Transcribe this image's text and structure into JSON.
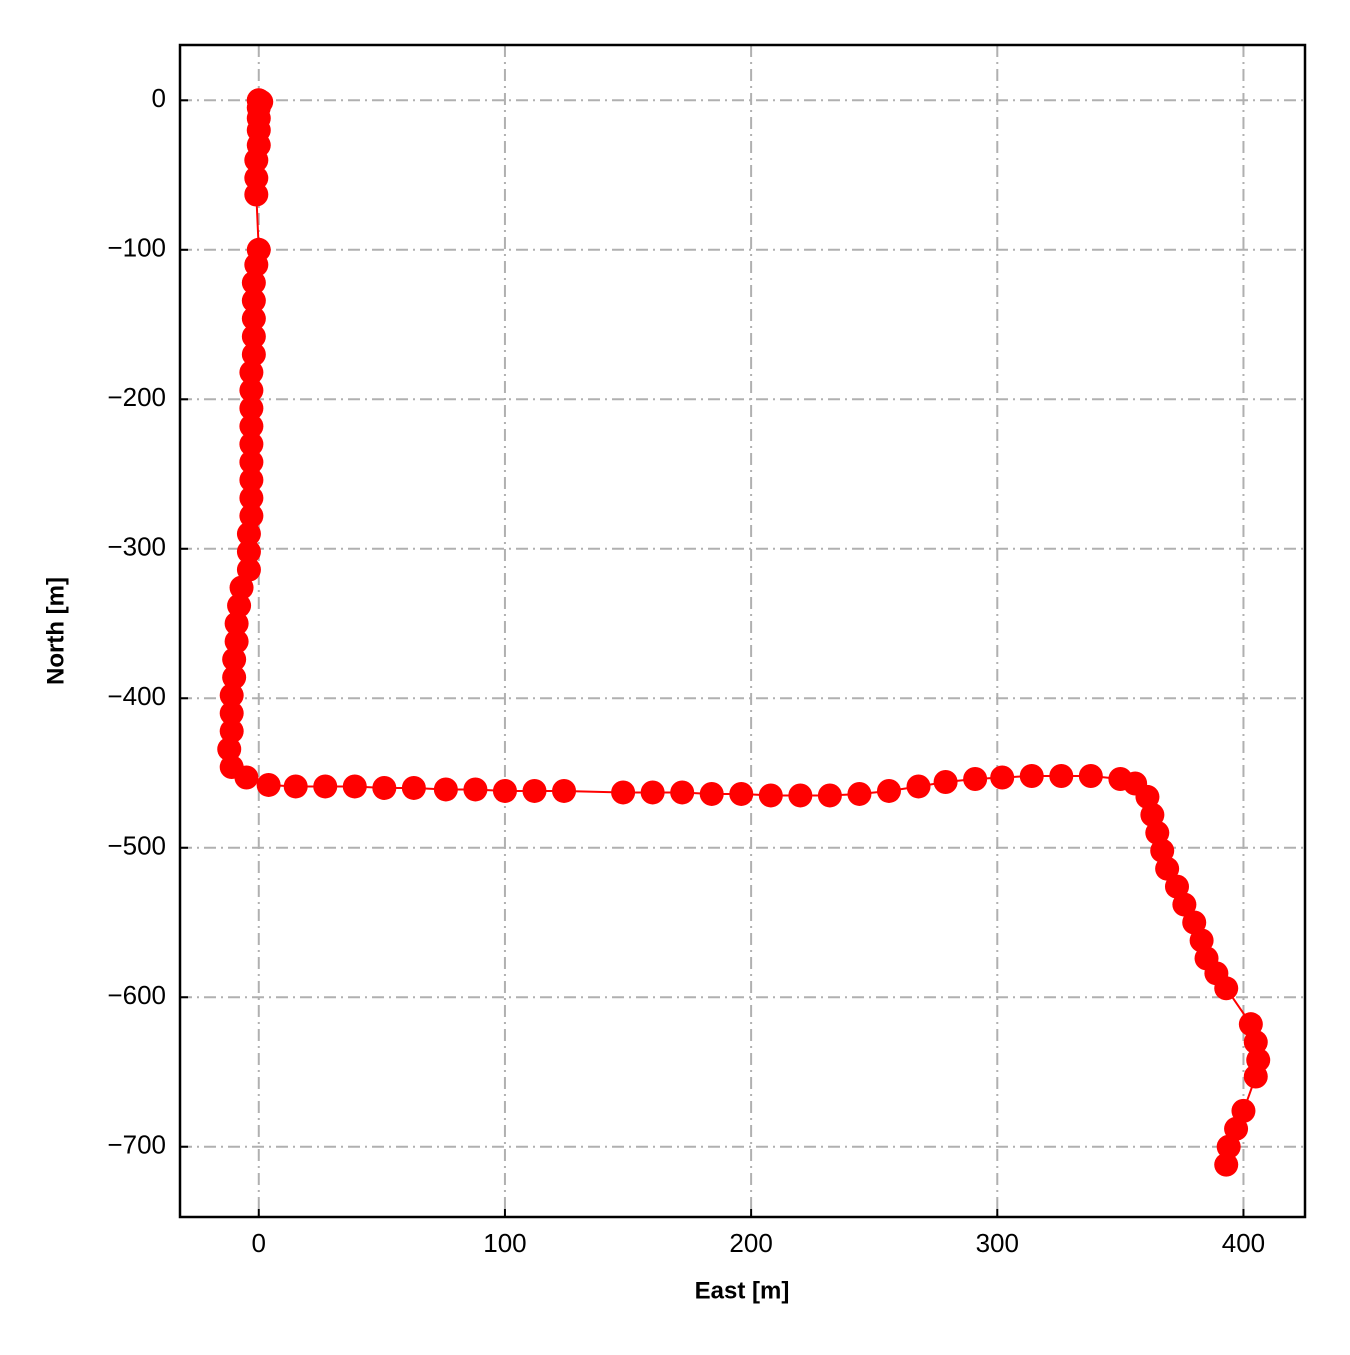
{
  "chart_data": {
    "type": "line",
    "xlabel": "East [m]",
    "ylabel": "North [m]",
    "color": "#ff0000",
    "x": [
      0,
      0,
      1,
      0,
      0,
      0,
      0,
      -1,
      -1,
      -1,
      0,
      -1,
      -2,
      -2,
      -2,
      -2,
      -2,
      -3,
      -3,
      -3,
      -3,
      -3,
      -3,
      -3,
      -3,
      -3,
      -4,
      -4,
      -4,
      -7,
      -8,
      -9,
      -9,
      -10,
      -10,
      -11,
      -11,
      -11,
      -12,
      -11,
      -5,
      4,
      15,
      27,
      39,
      51,
      63,
      76,
      88,
      100,
      112,
      124,
      148,
      160,
      172,
      184,
      196,
      208,
      220,
      232,
      244,
      256,
      268,
      279,
      291,
      302,
      314,
      326,
      338,
      350,
      356,
      361,
      363,
      365,
      367,
      369,
      373,
      376,
      380,
      383,
      385,
      389,
      393,
      403,
      405,
      406,
      405,
      400,
      397,
      394,
      393
    ],
    "values": [
      0,
      0,
      -1,
      -5,
      -12,
      -20,
      -30,
      -40,
      -52,
      -63,
      -100,
      -110,
      -122,
      -134,
      -146,
      -158,
      -170,
      -182,
      -194,
      -206,
      -218,
      -230,
      -242,
      -254,
      -266,
      -278,
      -290,
      -302,
      -314,
      -326,
      -338,
      -350,
      -362,
      -374,
      -386,
      -398,
      -410,
      -422,
      -434,
      -446,
      -453,
      -458,
      -459,
      -459,
      -459,
      -460,
      -460,
      -461,
      -461,
      -462,
      -462,
      -462,
      -463,
      -463,
      -463,
      -464,
      -464,
      -465,
      -465,
      -465,
      -464,
      -462,
      -459,
      -456,
      -454,
      -453,
      -452,
      -452,
      -452,
      -454,
      -457,
      -466,
      -478,
      -490,
      -502,
      -514,
      -526,
      -538,
      -550,
      -562,
      -574,
      -584,
      -594,
      -618,
      -630,
      -642,
      -653,
      -676,
      -688,
      -700,
      -712
    ],
    "xlim": [
      -32,
      425
    ],
    "ylim": [
      -747,
      37
    ],
    "xticks": [
      0,
      100,
      200,
      300,
      400
    ],
    "yticks": [
      0,
      {
        "value": -100,
        "label": "−100"
      },
      {
        "value": -200,
        "label": "−200"
      },
      {
        "value": -300,
        "label": "−300"
      },
      {
        "value": -400,
        "label": "−400"
      },
      {
        "value": -500,
        "label": "−500"
      },
      {
        "value": -600,
        "label": "−600"
      },
      {
        "value": -700,
        "label": "−700"
      }
    ],
    "grid": true
  }
}
